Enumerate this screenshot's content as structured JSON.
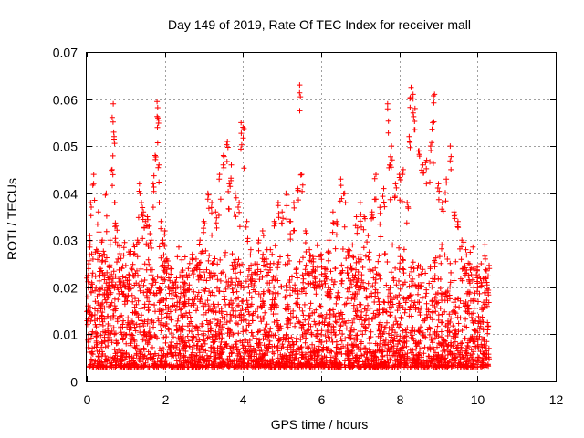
{
  "chart_data": {
    "type": "scatter",
    "title": "Day 149 of 2019, Rate Of TEC Index for receiver mall",
    "xlabel": "GPS time / hours",
    "ylabel": "ROTI / TECUs",
    "xlim": [
      0,
      12
    ],
    "ylim": [
      0,
      0.07
    ],
    "xticks": [
      0,
      2,
      4,
      6,
      8,
      10,
      12
    ],
    "yticks": [
      0,
      0.01,
      0.02,
      0.03,
      0.04,
      0.05,
      0.06,
      0.07
    ],
    "xtick_labels": [
      "0",
      "2",
      "4",
      "6",
      "8",
      "10",
      "12"
    ],
    "ytick_labels": [
      "0",
      "0.01",
      "0.02",
      "0.03",
      "0.04",
      "0.05",
      "0.06",
      "0.07"
    ],
    "grid": true,
    "marker": "+",
    "series": [
      {
        "name": "ROTI",
        "color": "#ff0000",
        "data_range_x": [
          0,
          10.3
        ],
        "baseline_range": [
          0.003,
          0.03
        ],
        "x": [
          0.02,
          0.05,
          0.08,
          0.1,
          0.13,
          0.18,
          0.22,
          0.25,
          0.3,
          0.35,
          0.4,
          0.45,
          0.5,
          0.55,
          0.6,
          0.65,
          0.68,
          0.7,
          0.72,
          0.75,
          0.8,
          0.85,
          0.9,
          0.95,
          1.0,
          1.05,
          1.1,
          1.15,
          1.2,
          1.25,
          1.3,
          1.35,
          1.4,
          1.45,
          1.5,
          1.55,
          1.6,
          1.65,
          1.7,
          1.75,
          1.8,
          1.82,
          1.85,
          1.9,
          1.95,
          2.0,
          2.05,
          2.1,
          2.15,
          2.2,
          2.3,
          2.4,
          2.5,
          2.6,
          2.7,
          2.8,
          2.9,
          3.0,
          3.1,
          3.2,
          3.3,
          3.4,
          3.5,
          3.6,
          3.65,
          3.7,
          3.8,
          3.9,
          3.95,
          4.0,
          4.1,
          4.2,
          4.3,
          4.4,
          4.5,
          4.6,
          4.7,
          4.8,
          4.9,
          5.0,
          5.1,
          5.2,
          5.3,
          5.4,
          5.45,
          5.5,
          5.6,
          5.7,
          5.8,
          5.9,
          6.0,
          6.1,
          6.2,
          6.3,
          6.4,
          6.5,
          6.6,
          6.7,
          6.8,
          6.9,
          7.0,
          7.1,
          7.2,
          7.3,
          7.4,
          7.5,
          7.6,
          7.7,
          7.75,
          7.8,
          7.9,
          8.0,
          8.1,
          8.2,
          8.25,
          8.3,
          8.35,
          8.4,
          8.5,
          8.6,
          8.7,
          8.8,
          8.85,
          8.9,
          9.0,
          9.1,
          9.2,
          9.3,
          9.4,
          9.5,
          9.6,
          9.7,
          9.8,
          9.9,
          10.0,
          10.1,
          10.2,
          10.3
        ],
        "y": [
          0.018,
          0.025,
          0.031,
          0.038,
          0.021,
          0.044,
          0.017,
          0.028,
          0.036,
          0.024,
          0.03,
          0.027,
          0.04,
          0.022,
          0.03,
          0.045,
          0.059,
          0.052,
          0.038,
          0.033,
          0.026,
          0.029,
          0.024,
          0.021,
          0.022,
          0.02,
          0.027,
          0.024,
          0.029,
          0.023,
          0.03,
          0.042,
          0.038,
          0.036,
          0.034,
          0.035,
          0.033,
          0.03,
          0.042,
          0.048,
          0.0595,
          0.056,
          0.046,
          0.034,
          0.03,
          0.032,
          0.026,
          0.022,
          0.024,
          0.021,
          0.022,
          0.02,
          0.021,
          0.024,
          0.027,
          0.026,
          0.03,
          0.034,
          0.04,
          0.038,
          0.036,
          0.044,
          0.048,
          0.051,
          0.042,
          0.046,
          0.04,
          0.038,
          0.055,
          0.054,
          0.034,
          0.028,
          0.025,
          0.03,
          0.032,
          0.026,
          0.028,
          0.034,
          0.038,
          0.036,
          0.04,
          0.034,
          0.038,
          0.041,
          0.063,
          0.044,
          0.032,
          0.028,
          0.026,
          0.029,
          0.027,
          0.024,
          0.03,
          0.036,
          0.034,
          0.043,
          0.04,
          0.028,
          0.029,
          0.035,
          0.038,
          0.035,
          0.031,
          0.036,
          0.044,
          0.037,
          0.041,
          0.059,
          0.046,
          0.05,
          0.042,
          0.044,
          0.045,
          0.038,
          0.052,
          0.0625,
          0.061,
          0.058,
          0.049,
          0.046,
          0.047,
          0.05,
          0.055,
          0.061,
          0.042,
          0.038,
          0.043,
          0.05,
          0.036,
          0.034,
          0.03,
          0.028,
          0.025,
          0.024,
          0.022,
          0.021,
          0.026,
          0.024
        ]
      }
    ]
  }
}
